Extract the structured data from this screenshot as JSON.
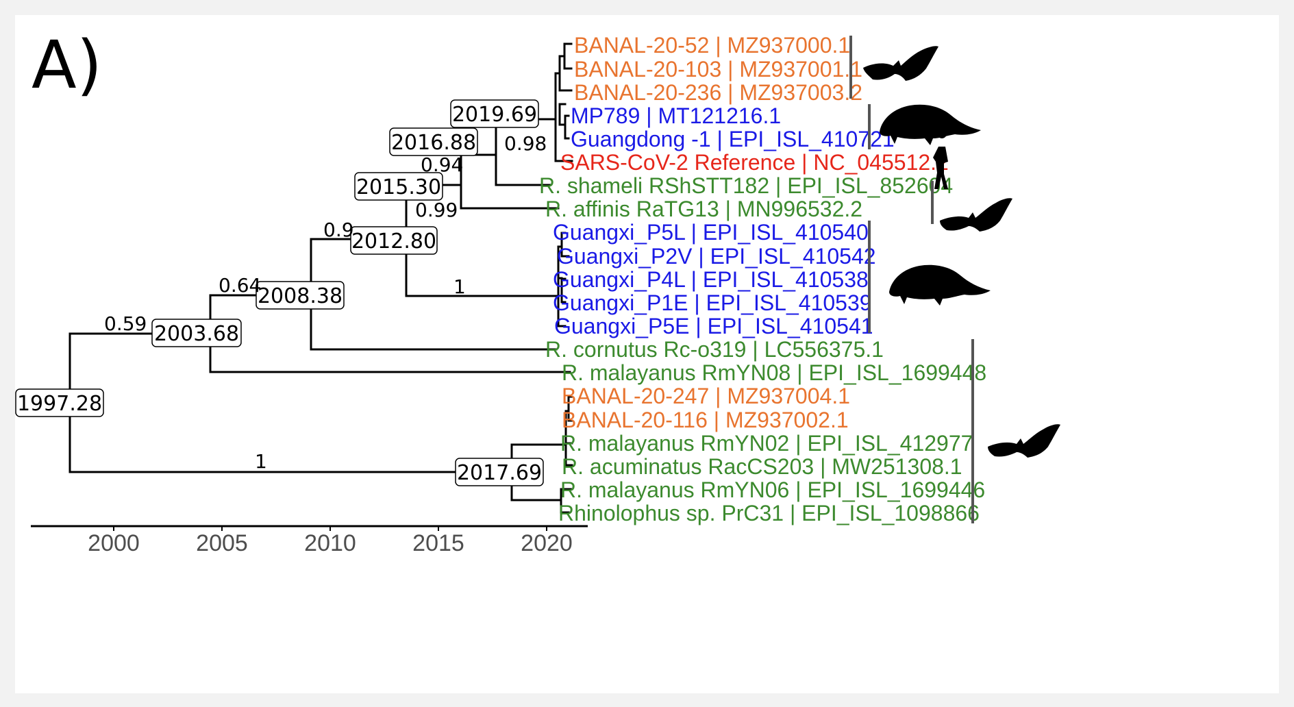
{
  "panel_label": "A)",
  "colors": {
    "orange": "#e8742f",
    "blue": "#1a1ae6",
    "red": "#e6261a",
    "green": "#3c8a2e"
  },
  "tips": [
    {
      "name": "BANAL-20-52 | MZ937000.1",
      "color": "orange"
    },
    {
      "name": "BANAL-20-103 | MZ937001.1",
      "color": "orange"
    },
    {
      "name": "BANAL-20-236 | MZ937003.2",
      "color": "orange"
    },
    {
      "name": "MP789 | MT121216.1",
      "color": "blue"
    },
    {
      "name": "Guangdong -1 | EPI_ISL_410721",
      "color": "blue"
    },
    {
      "name": "SARS-CoV-2 Reference | NC_045512.2",
      "color": "red"
    },
    {
      "name": "R. shameli RShSTT182 | EPI_ISL_852604",
      "color": "green"
    },
    {
      "name": "R. affinis RaTG13 | MN996532.2",
      "color": "green"
    },
    {
      "name": "Guangxi_P5L | EPI_ISL_410540",
      "color": "blue"
    },
    {
      "name": "Guangxi_P2V | EPI_ISL_410542",
      "color": "blue"
    },
    {
      "name": "Guangxi_P4L | EPI_ISL_410538",
      "color": "blue"
    },
    {
      "name": "Guangxi_P1E | EPI_ISL_410539",
      "color": "blue"
    },
    {
      "name": "Guangxi_P5E | EPI_ISL_410541",
      "color": "blue"
    },
    {
      "name": "R. cornutus Rc-o319 | LC556375.1",
      "color": "green"
    },
    {
      "name": "R. malayanus RmYN08 | EPI_ISL_1699448",
      "color": "green"
    },
    {
      "name": "BANAL-20-247 | MZ937004.1",
      "color": "orange"
    },
    {
      "name": "BANAL-20-116 | MZ937002.1",
      "color": "orange"
    },
    {
      "name": "R. malayanus RmYN02 | EPI_ISL_412977",
      "color": "green"
    },
    {
      "name": "R. acuminatus RacCS203 | MW251308.1",
      "color": "green"
    },
    {
      "name": "R. malayanus RmYN06 | EPI_ISL_1699446",
      "color": "green"
    },
    {
      "name": "Rhinolophus sp. PrC31 | EPI_ISL_1098866",
      "color": "green"
    }
  ],
  "node_dates": [
    "1997.28",
    "2003.68",
    "2008.38",
    "2012.80",
    "2015.30",
    "2016.88",
    "2019.69",
    "2017.69"
  ],
  "supports": [
    "0.59",
    "0.64",
    "0.9",
    "0.99",
    "0.94",
    "0.98",
    "1",
    "1"
  ],
  "axis": {
    "ticks": [
      "2000",
      "2005",
      "2010",
      "2015",
      "2020"
    ]
  },
  "host_groups": [
    "bat",
    "pangolin",
    "human",
    "bat",
    "pangolin",
    "bat"
  ]
}
